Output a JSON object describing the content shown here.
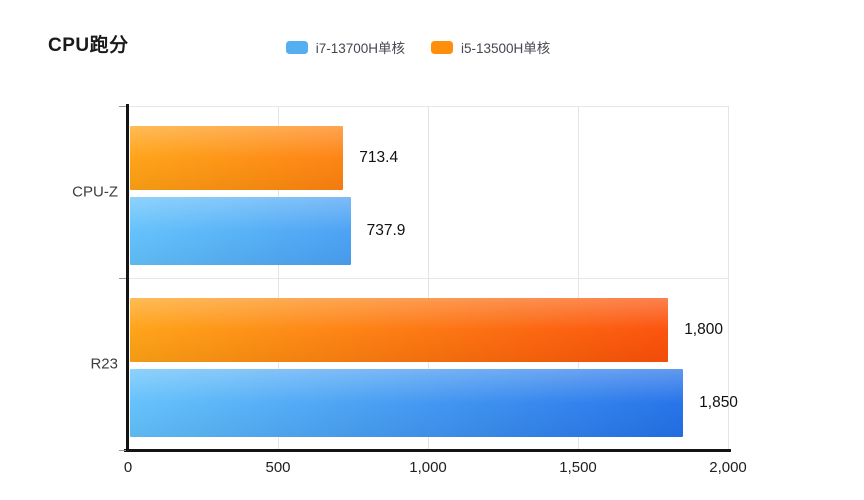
{
  "page": {
    "background": "#ffffff"
  },
  "header": {
    "title": "CPU跑分"
  },
  "legend": {
    "position": "top-center",
    "items": [
      {
        "label": "i7-13700H单核",
        "color": "#55AEF2"
      },
      {
        "label": "i5-13500H单核",
        "color": "#FF8E0D"
      }
    ]
  },
  "chart_data": {
    "type": "bar",
    "orientation": "horizontal",
    "title": "CPU跑分",
    "categories": [
      "CPU-Z",
      "R23"
    ],
    "series": [
      {
        "name": "i7-13700H单核",
        "values": [
          737.9,
          1850
        ],
        "value_labels": [
          "737.9",
          "1,850"
        ],
        "legend_color": "#55AEF2",
        "color_light": "#63C1FB",
        "color_dark": "#1E6BE8"
      },
      {
        "name": "i5-13500H单核",
        "values": [
          713.4,
          1800
        ],
        "value_labels": [
          "713.4",
          "1,800"
        ],
        "legend_color": "#FF8E0D",
        "color_light": "#FFA215",
        "color_dark": "#FB4708"
      }
    ],
    "row_order_within_category": [
      "i5-13500H单核",
      "i7-13700H单核"
    ],
    "xlabel": "",
    "ylabel": "",
    "xlim": [
      0,
      2000
    ],
    "x_ticks": [
      {
        "label": "0",
        "value": 0
      },
      {
        "label": "500",
        "value": 500
      },
      {
        "label": "1,000",
        "value": 1000
      },
      {
        "label": "1,500",
        "value": 1500
      },
      {
        "label": "2,000",
        "value": 2000
      }
    ],
    "grid": true,
    "grid_color": "#e4e4e4",
    "axis_color": "#141414",
    "legend_position": "top-center"
  }
}
